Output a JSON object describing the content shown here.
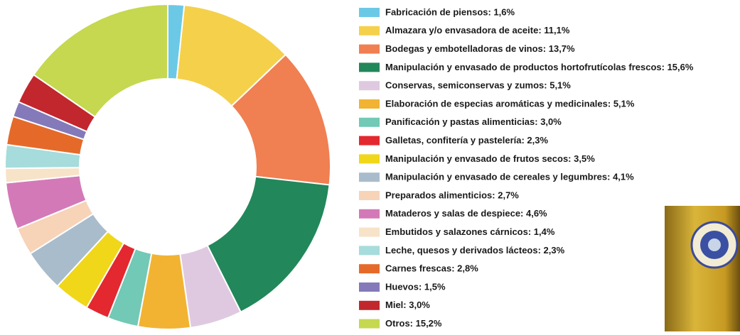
{
  "chart_data": {
    "type": "donut",
    "categories": [
      "Fabricación de piensos: 1,6%",
      "Almazara y/o envasadora de aceite: 11,1%",
      "Bodegas y embotelladoras de vinos: 13,7%",
      "Manipulación y envasado de productos hortofrutícolas frescos: 15,6%",
      "Conservas, semiconservas y zumos: 5,1%",
      "Elaboración de especias aromáticas y medicinales: 5,1%",
      "Panificación y pastas alimenticias: 3,0%",
      "Galletas, confitería y pastelería: 2,3%",
      "Manipulación y envasado de frutos secos: 3,5%",
      "Manipulación y envasado de cereales y legumbres: 4,1%",
      "Preparados alimenticios: 2,7%",
      "Mataderos y salas de despiece: 4,6%",
      "Embutidos y salazones cárnicos: 1,4%",
      "Leche, quesos y derivados lácteos: 2,3%",
      "Carnes frescas: 2,8%",
      "Huevos: 1,5%",
      "Miel: 3,0%",
      "Otros: 15,2%"
    ],
    "values": [
      1.6,
      11.1,
      13.7,
      15.6,
      5.1,
      5.1,
      3.0,
      2.3,
      3.5,
      4.1,
      2.7,
      4.6,
      1.4,
      2.3,
      2.8,
      1.5,
      3.0,
      15.2
    ],
    "colors": [
      "#6cc9e6",
      "#f5d04a",
      "#f07f52",
      "#22875a",
      "#dfc9e0",
      "#f2b333",
      "#72c9b5",
      "#e3282f",
      "#f0d719",
      "#a9bccb",
      "#f7d3b8",
      "#d479b7",
      "#f7e3c8",
      "#a6dcdb",
      "#e56a2a",
      "#8479b9",
      "#c1272d",
      "#c5d84f"
    ]
  }
}
